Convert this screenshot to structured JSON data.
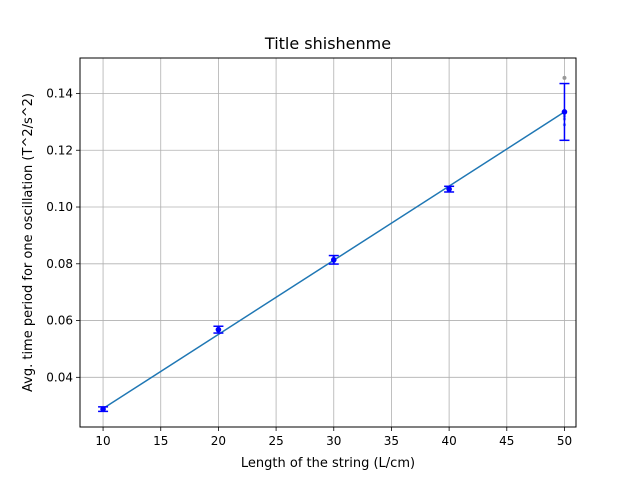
{
  "chart_data": {
    "type": "line",
    "title": "Title shishenme",
    "xlabel": "Length of the string (L/cm)",
    "ylabel": "Avg. time period for one oscillation (T^2/s^2)",
    "xlim": [
      8.0,
      51.0
    ],
    "ylim": [
      0.0225,
      0.1525
    ],
    "x_ticks": [
      10,
      15,
      20,
      25,
      30,
      35,
      40,
      45,
      50
    ],
    "y_ticks": [
      0.04,
      0.06,
      0.08,
      0.1,
      0.12,
      0.14
    ],
    "y_tick_labels": [
      "0.04",
      "0.06",
      "0.08",
      "0.10",
      "0.12",
      "0.14"
    ],
    "grid": true,
    "fit_line": {
      "color": "#1f77b4",
      "x": [
        10,
        50
      ],
      "y": [
        0.029,
        0.1335
      ]
    },
    "series": [
      {
        "marker_color": "#0000ff",
        "errorbar_color": "#0000ff",
        "x": [
          10,
          20,
          30,
          40,
          50
        ],
        "y": [
          0.0288,
          0.0568,
          0.0814,
          0.1063,
          0.1335
        ],
        "yerr": [
          0.0008,
          0.0012,
          0.0015,
          0.001,
          0.01
        ]
      }
    ],
    "raw_points": {
      "color": "#4c72f0",
      "points": [
        [
          10,
          0.0286
        ],
        [
          10,
          0.029
        ],
        [
          10,
          0.0292
        ],
        [
          20,
          0.0562
        ],
        [
          20,
          0.0566
        ],
        [
          20,
          0.057
        ],
        [
          20,
          0.0574
        ],
        [
          30,
          0.0806
        ],
        [
          30,
          0.0812
        ],
        [
          30,
          0.0818
        ],
        [
          30,
          0.0824
        ],
        [
          40,
          0.1058
        ],
        [
          40,
          0.1062
        ],
        [
          40,
          0.1066
        ],
        [
          40,
          0.1068
        ],
        [
          50,
          0.129
        ],
        [
          50,
          0.131
        ],
        [
          50,
          0.132
        ],
        [
          50,
          0.133
        ],
        [
          50,
          0.134
        ]
      ]
    },
    "outlier_points": {
      "color": "#999999",
      "points": [
        [
          50,
          0.1455
        ]
      ]
    }
  }
}
